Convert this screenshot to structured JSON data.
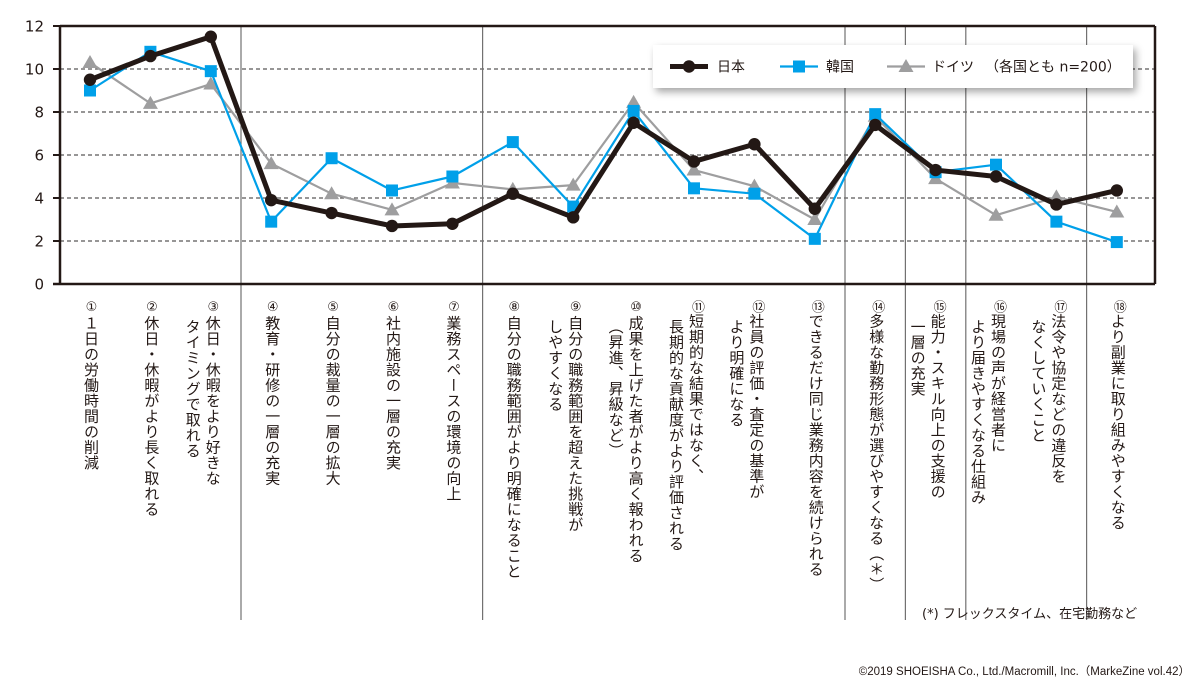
{
  "chart_data": {
    "type": "line",
    "title": "",
    "xlabel": "",
    "ylabel": "",
    "ylim": [
      0,
      12
    ],
    "yticks": [
      "0",
      "2",
      "4",
      "6",
      "8",
      "10",
      "12"
    ],
    "grid": "horizontal dashed",
    "legend_position": "top-right",
    "legend_note": "（各国とも n=200）",
    "categories": [
      {
        "num": "①",
        "lines": [
          "１日の労働時間の削減"
        ]
      },
      {
        "num": "②",
        "lines": [
          "休日・休暇がより長く取れる"
        ]
      },
      {
        "num": "③",
        "lines": [
          "休日・休暇をより好きな",
          "タイミングで取れる"
        ]
      },
      {
        "num": "④",
        "lines": [
          "教育・研修の一層の充実"
        ]
      },
      {
        "num": "⑤",
        "lines": [
          "自分の裁量の一層の拡大"
        ]
      },
      {
        "num": "⑥",
        "lines": [
          "社内施設の一層の充実"
        ]
      },
      {
        "num": "⑦",
        "lines": [
          "業務スペースの環境の向上"
        ]
      },
      {
        "num": "⑧",
        "lines": [
          "自分の職務範囲がより明確になること"
        ]
      },
      {
        "num": "⑨",
        "lines": [
          "自分の職務範囲を超えた挑戦が",
          "しやすくなる"
        ]
      },
      {
        "num": "⑩",
        "lines": [
          "成果を上げた者がより高く報われる",
          "（昇進、昇級など）"
        ]
      },
      {
        "num": "⑪",
        "lines": [
          "短期的な結果ではなく、",
          "長期的な貢献度がより評価される"
        ]
      },
      {
        "num": "⑫",
        "lines": [
          "社員の評価・査定の基準が",
          "より明確になる"
        ]
      },
      {
        "num": "⑬",
        "lines": [
          "できるだけ同じ業務内容を続けられる"
        ]
      },
      {
        "num": "⑭",
        "lines": [
          "多様な勤務形態が選びやすくなる（＊）"
        ]
      },
      {
        "num": "⑮",
        "lines": [
          "能力・スキル向上の支援の",
          "一層の充実"
        ]
      },
      {
        "num": "⑯",
        "lines": [
          "現場の声が経営者に",
          "より届きやすくなる仕組み"
        ]
      },
      {
        "num": "⑰",
        "lines": [
          "法令や協定などの違反を",
          "なくしていくこと"
        ]
      },
      {
        "num": "⑱",
        "lines": [
          "より副業に取り組みやすくなる"
        ]
      }
    ],
    "group_separators_after": [
      3,
      7,
      13,
      14,
      15,
      17
    ],
    "series": [
      {
        "name": "ドイツ",
        "color": "#9e9e9f",
        "marker": "triangle",
        "values": [
          10.3,
          8.4,
          9.3,
          5.6,
          4.2,
          3.45,
          4.7,
          4.4,
          4.6,
          8.45,
          5.3,
          4.55,
          3.0,
          7.8,
          4.9,
          3.2,
          4.05,
          3.35
        ]
      },
      {
        "name": "韓国",
        "color": "#00a0e9",
        "marker": "square",
        "values": [
          9.0,
          10.8,
          9.9,
          2.9,
          5.85,
          4.35,
          5.0,
          6.6,
          3.6,
          8.05,
          4.45,
          4.2,
          2.1,
          7.9,
          5.2,
          5.55,
          2.9,
          1.95
        ]
      },
      {
        "name": "日本",
        "color": "#231815",
        "marker": "circle",
        "values": [
          9.5,
          10.6,
          11.5,
          3.9,
          3.3,
          2.7,
          2.8,
          4.2,
          3.1,
          7.5,
          5.7,
          6.5,
          3.5,
          7.4,
          5.3,
          5.0,
          3.7,
          4.35
        ]
      }
    ],
    "legend_order": [
      "日本",
      "韓国",
      "ドイツ"
    ]
  },
  "footnote": "(*) フレックスタイム、在宅勤務など",
  "copyright": "©2019 SHOEISHA Co., Ltd./Macromill, Inc.（MarkeZine vol.42）"
}
